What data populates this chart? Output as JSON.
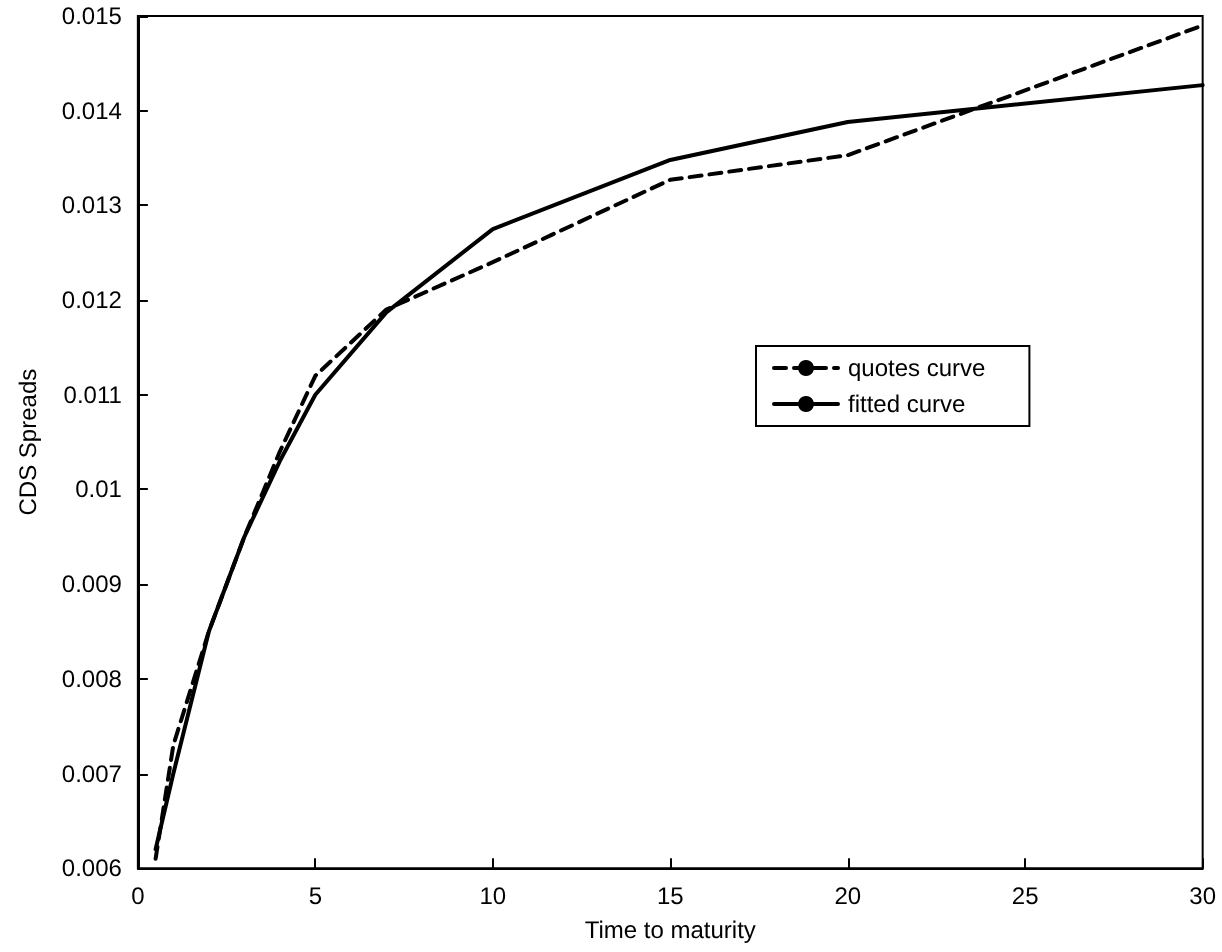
{
  "chart_data": {
    "type": "line",
    "xlabel": "Time to maturity",
    "ylabel": "CDS Spreads",
    "x": [
      0.5,
      1,
      2,
      3,
      4,
      5,
      7,
      10,
      15,
      20,
      30
    ],
    "series": [
      {
        "name": "quotes curve",
        "color": "#000000",
        "line_style": "dashed",
        "values": [
          0.0061,
          0.0073,
          0.0085,
          0.0095,
          0.0104,
          0.0112,
          0.0119,
          0.0124,
          0.01327,
          0.01353,
          0.0149
        ]
      },
      {
        "name": "fitted curve",
        "color": "#000000",
        "line_style": "solid",
        "values": [
          0.0062,
          0.007,
          0.0085,
          0.0095,
          0.0103,
          0.011,
          0.01187,
          0.01275,
          0.01348,
          0.01388,
          0.01427
        ]
      }
    ],
    "xlim": [
      0,
      30
    ],
    "xticks": [
      0,
      5,
      10,
      15,
      20,
      25,
      30
    ],
    "ylim": [
      0.006,
      0.015
    ],
    "yticks": [
      0.006,
      0.007,
      0.008,
      0.009,
      0.01,
      0.011,
      0.012,
      0.013,
      0.014,
      0.015
    ],
    "grid": false,
    "legend": "right",
    "marker": "none"
  }
}
